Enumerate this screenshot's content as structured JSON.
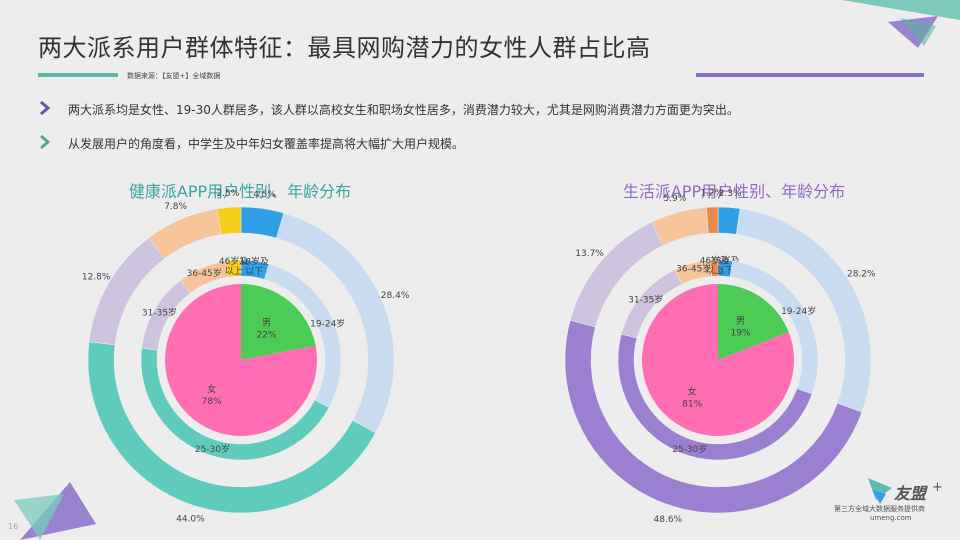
{
  "title": "两大派系用户群体特征：最具网购潜力的女性人群占比高",
  "source": "数据来源：【友盟+】全域数据",
  "bullets": [
    "两大派系均是女性、19-30人群居多，该人群以高校女生和职场女性居多，消费潜力较大，尤其是网购消费潜力方面更为突出。",
    "从发展用户的角度看，中学生及中年妇女覆盖率提高将大幅扩大用户规模。"
  ],
  "colors": {
    "teal": "#5fcbbd",
    "lightblue": "#c9dbf1",
    "lavender": "#cdc3df",
    "peach": "#f6c49a",
    "yellow": "#f5cc18",
    "blue": "#2f9fe8",
    "purple": "#9b7fd1",
    "orange": "#e8894a",
    "pink": "#ff6eb2",
    "green": "#4ccc55"
  },
  "chart_data": [
    {
      "type": "pie",
      "title": "健康派APP用户性别、年龄分布",
      "age": {
        "categories": [
          "18岁及以下",
          "19-24岁",
          "25-30岁",
          "31-35岁",
          "36-45岁",
          "46岁及以上"
        ],
        "values": [
          4.5,
          28.4,
          44.0,
          12.8,
          7.8,
          2.5
        ],
        "labels": [
          "4.5%",
          "28.4%",
          "44.0%",
          "12.8%",
          "7.8%",
          "2.5%"
        ],
        "inner_labels": [
          "18岁及\n以下",
          "19-24岁",
          "25-30岁",
          "31-35岁",
          "36-45岁",
          "46岁及\n以上"
        ]
      },
      "gender": {
        "categories": [
          "男",
          "女"
        ],
        "values": [
          22,
          78
        ],
        "labels": [
          "22%",
          "78%"
        ]
      }
    },
    {
      "type": "pie",
      "title": "生活派APP用户性别、年龄分布",
      "age": {
        "categories": [
          "18岁及以下",
          "19-24岁",
          "25-30岁",
          "31-35岁",
          "36-45岁",
          "46岁及以上"
        ],
        "values": [
          2.3,
          28.2,
          48.6,
          13.7,
          5.9,
          1.2
        ],
        "labels": [
          "2.3%",
          "28.2%",
          "48.6%",
          "13.7%",
          "5.9%",
          "1.2%"
        ],
        "inner_labels": [
          "18岁及\n以下",
          "19-24岁",
          "25-30岁",
          "31-35岁",
          "36-45岁",
          "46岁及\n以上"
        ]
      },
      "gender": {
        "categories": [
          "男",
          "女"
        ],
        "values": [
          19,
          81
        ],
        "labels": [
          "19%",
          "81%"
        ]
      }
    }
  ],
  "footer": {
    "logo": "友盟",
    "logo_plus": "+",
    "tagline": "第三方全域大数据服务提供商",
    "site": "umeng.com",
    "page": "16"
  }
}
